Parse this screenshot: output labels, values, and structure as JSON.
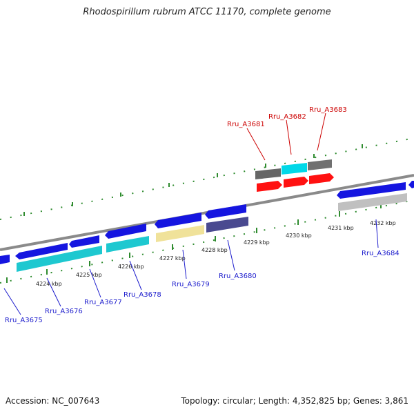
{
  "title": "Rhodospirillum rubrum ATCC 11170, complete genome",
  "footer": {
    "accession": "Accession: NC_007643",
    "topology": "Topology: circular; Length: 4,352,825 bp; Genes: 3,861"
  },
  "colors": {
    "backbone": "#808080",
    "ticks": "#2e8b2e",
    "plus_strand_label": "#cc0000",
    "minus_strand_label": "#1a1acc"
  },
  "scale_ticks": [
    "4224 kbp",
    "4225 kbp",
    "4226 kbp",
    "4227 kbp",
    "4228 kbp",
    "4229 kbp",
    "4230 kbp",
    "4231 kbp",
    "4232 kbp"
  ],
  "genes": {
    "outer": [
      {
        "label": "Rru_A3681",
        "color": "#cc0000"
      },
      {
        "label": "Rru_A3682",
        "color": "#cc0000"
      },
      {
        "label": "Rru_A3683",
        "color": "#cc0000"
      }
    ],
    "inner": [
      {
        "label": "Rru_A3675",
        "color": "#1a1acc"
      },
      {
        "label": "Rru_A3676",
        "color": "#1a1acc"
      },
      {
        "label": "Rru_A3677",
        "color": "#1a1acc"
      },
      {
        "label": "Rru_A3678",
        "color": "#1a1acc"
      },
      {
        "label": "Rru_A3679",
        "color": "#1a1acc"
      },
      {
        "label": "Rru_A3680",
        "color": "#1a1acc"
      },
      {
        "label": "Rru_A3684",
        "color": "#1a1acc"
      }
    ]
  }
}
